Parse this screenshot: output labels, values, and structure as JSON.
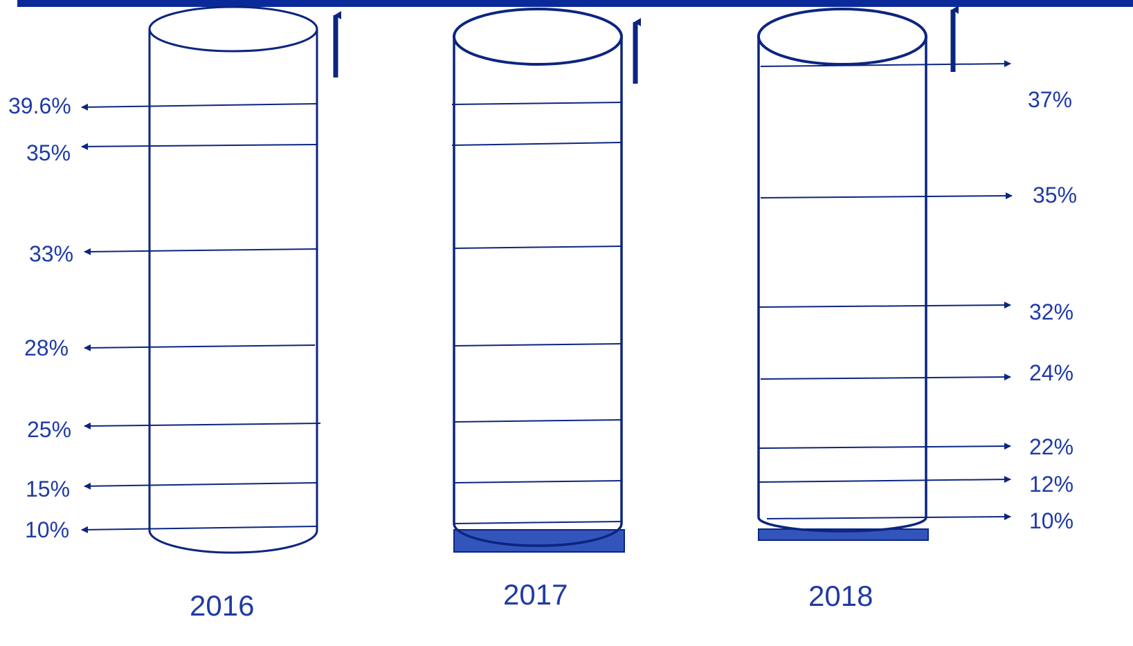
{
  "colors": {
    "accent": "#0b2580",
    "text": "#1f3aa6",
    "base": "#3355bb"
  },
  "cylinders": [
    {
      "year": "2016",
      "labels": [
        "39.6%",
        "35%",
        "33%",
        "28%",
        "25%",
        "15%",
        "10%"
      ]
    },
    {
      "year": "2017",
      "labels": []
    },
    {
      "year": "2018",
      "labels": [
        "37%",
        "35%",
        "32%",
        "24%",
        "22%",
        "12%",
        "10%"
      ]
    }
  ]
}
